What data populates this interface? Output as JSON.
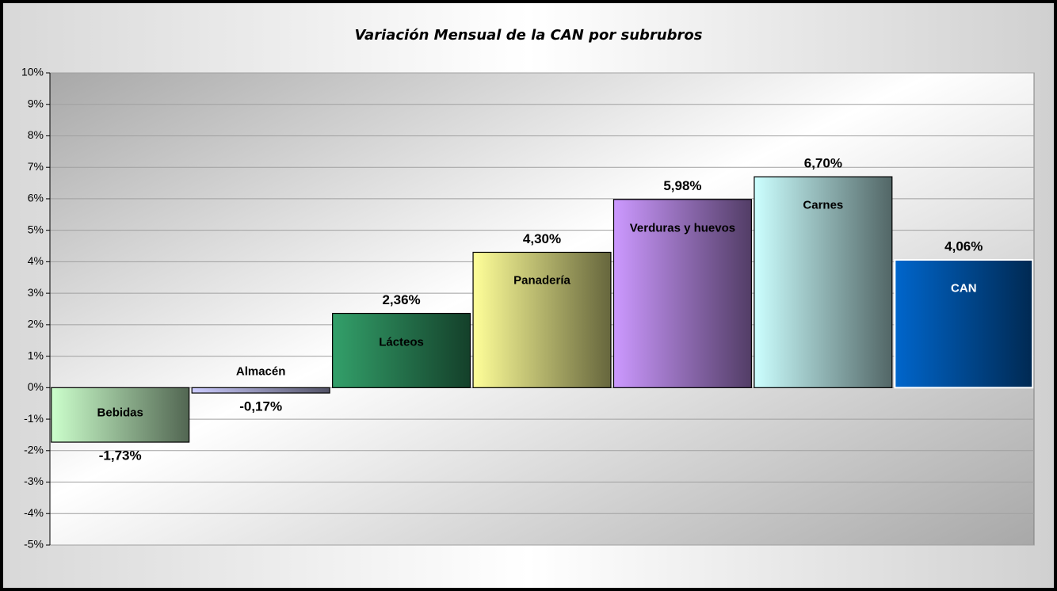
{
  "chart_data": {
    "type": "bar",
    "title": "Variación Mensual de la CAN por subrubros",
    "categories": [
      "Bebidas",
      "Almacén",
      "Lácteos",
      "Panadería",
      "Verduras y huevos",
      "Carnes",
      "CAN"
    ],
    "values": [
      -1.73,
      -0.17,
      2.36,
      4.3,
      5.98,
      6.7,
      4.06
    ],
    "value_labels": [
      "-1,73%",
      "-0,17%",
      "2,36%",
      "4,30%",
      "5,98%",
      "6,70%",
      "4,06%"
    ],
    "colors": [
      "#ccffcc",
      "#ccccff",
      "#33a06a",
      "#ffff99",
      "#cc99ff",
      "#ccffff",
      "#0066cc"
    ],
    "edgecolors": [
      "#000000",
      "#000000",
      "#000000",
      "#000000",
      "#000000",
      "#000000",
      "#ffffff"
    ],
    "ylim": [
      -5,
      10
    ],
    "yticks": [
      {
        "value": -5,
        "label": "-5%"
      },
      {
        "value": -4,
        "label": "-4%"
      },
      {
        "value": -3,
        "label": "-3%"
      },
      {
        "value": -2,
        "label": "-2%"
      },
      {
        "value": -1,
        "label": "-1%"
      },
      {
        "value": 0,
        "label": "0%"
      },
      {
        "value": 1,
        "label": "1%"
      },
      {
        "value": 2,
        "label": "2%"
      },
      {
        "value": 3,
        "label": "3%"
      },
      {
        "value": 4,
        "label": "4%"
      },
      {
        "value": 5,
        "label": "5%"
      },
      {
        "value": 6,
        "label": "6%"
      },
      {
        "value": 7,
        "label": "7%"
      },
      {
        "value": 8,
        "label": "8%"
      },
      {
        "value": 9,
        "label": "9%"
      },
      {
        "value": 10,
        "label": "10%"
      }
    ],
    "grid": true
  }
}
